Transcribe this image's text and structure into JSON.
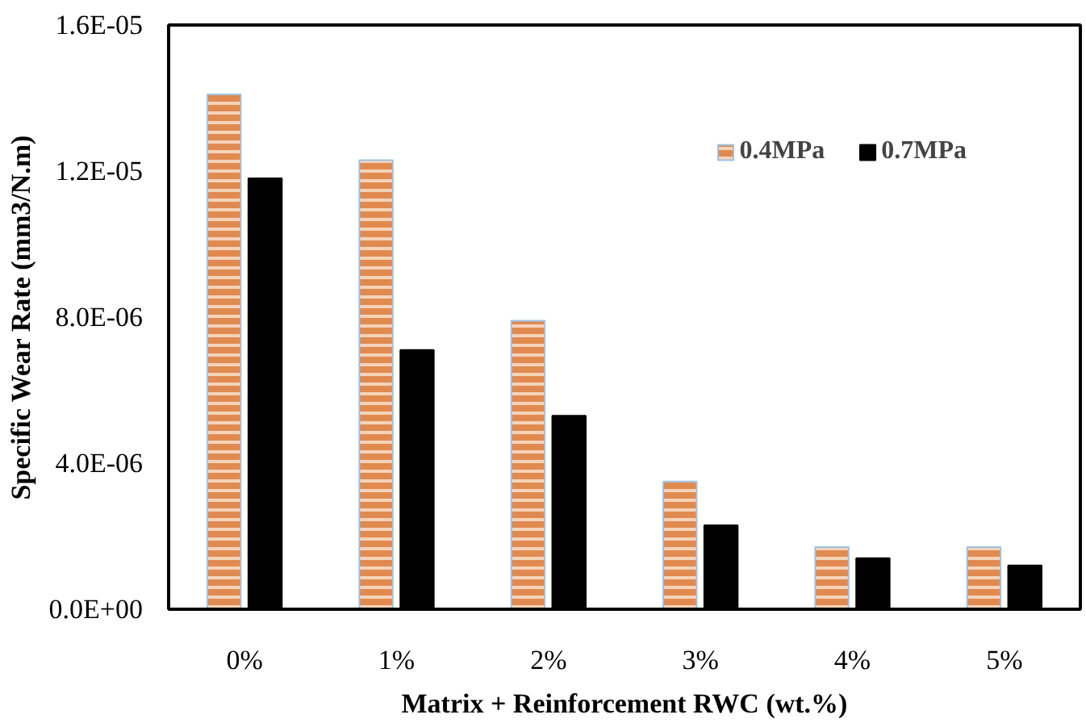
{
  "chart_data": {
    "type": "bar",
    "xlabel": "Matrix + Reinforcement RWC (wt.%)",
    "ylabel": "Specific Wear Rate (mm3/N.m)",
    "categories": [
      "0%",
      "1%",
      "2%",
      "3%",
      "4%",
      "5%"
    ],
    "series": [
      {
        "name": "0.4MPa",
        "color": "#e08a50",
        "values": [
          1.41e-05,
          1.23e-05,
          7.9e-06,
          3.5e-06,
          1.7e-06,
          1.7e-06
        ]
      },
      {
        "name": "0.7MPa",
        "color": "#000000",
        "values": [
          1.18e-05,
          7.1e-06,
          5.3e-06,
          2.3e-06,
          1.4e-06,
          1.2e-06
        ]
      }
    ],
    "ylim": [
      0,
      1.6e-05
    ],
    "yticks": [
      {
        "value": 0,
        "label": "0.0E+00"
      },
      {
        "value": 4e-06,
        "label": "4.0E-06"
      },
      {
        "value": 8e-06,
        "label": "8.0E-06"
      },
      {
        "value": 1.2e-05,
        "label": "1.2E-05"
      },
      {
        "value": 1.6e-05,
        "label": "1.6E-05"
      }
    ],
    "grid": false,
    "legend": "top right"
  }
}
